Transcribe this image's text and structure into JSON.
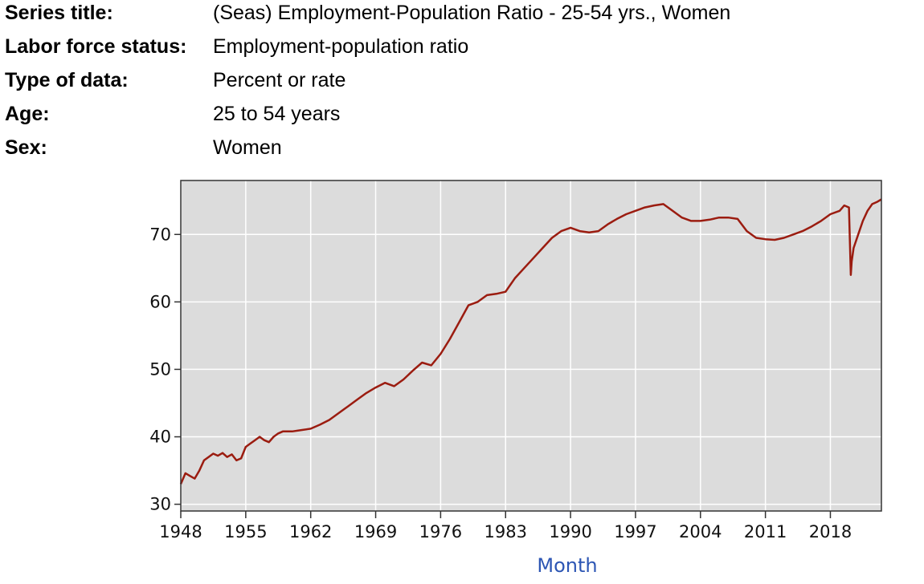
{
  "series_info": [
    {
      "label": "Series title:",
      "value": "(Seas) Employment-Population Ratio - 25-54 yrs., Women"
    },
    {
      "label": "Labor force status:",
      "value": "Employment-population ratio"
    },
    {
      "label": "Type of data:",
      "value": "Percent or rate"
    },
    {
      "label": "Age:",
      "value": "25 to 54 years"
    },
    {
      "label": "Sex:",
      "value": "Women"
    }
  ],
  "chart_data": {
    "type": "line",
    "xlabel": "Month",
    "ylabel": "",
    "xlim": [
      1948,
      2023.5
    ],
    "ylim": [
      29,
      78
    ],
    "x_ticks": [
      1948,
      1955,
      1962,
      1969,
      1976,
      1983,
      1990,
      1997,
      2004,
      2011,
      2018
    ],
    "x_tick_labels": [
      "1948",
      "1955",
      "1962",
      "1969",
      "1976",
      "1983",
      "1990",
      "1997",
      "2004",
      "2011",
      "2018"
    ],
    "y_ticks": [
      30,
      40,
      50,
      60,
      70
    ],
    "y_tick_labels": [
      "30",
      "40",
      "50",
      "60",
      "70"
    ],
    "grid": true,
    "line_color": "#9b1c10",
    "plot_background": "#dcdcdc",
    "series": [
      {
        "x": [
          1948.0,
          1948.5,
          1949.0,
          1949.5,
          1950.0,
          1950.5,
          1951.0,
          1951.5,
          1952.0,
          1952.5,
          1953.0,
          1953.5,
          1954.0,
          1954.5,
          1955.0,
          1955.5,
          1956.0,
          1956.5,
          1957.0,
          1957.5,
          1958.0,
          1958.5,
          1959.0,
          1960.0,
          1961.0,
          1962.0,
          1963.0,
          1964.0,
          1965.0,
          1966.0,
          1967.0,
          1968.0,
          1969.0,
          1970.0,
          1971.0,
          1972.0,
          1973.0,
          1974.0,
          1975.0,
          1976.0,
          1977.0,
          1978.0,
          1979.0,
          1980.0,
          1981.0,
          1982.0,
          1983.0,
          1984.0,
          1985.0,
          1986.0,
          1987.0,
          1988.0,
          1989.0,
          1990.0,
          1991.0,
          1992.0,
          1993.0,
          1994.0,
          1995.0,
          1996.0,
          1997.0,
          1998.0,
          1999.0,
          2000.0,
          2001.0,
          2002.0,
          2003.0,
          2004.0,
          2005.0,
          2006.0,
          2007.0,
          2008.0,
          2009.0,
          2010.0,
          2011.0,
          2012.0,
          2013.0,
          2014.0,
          2015.0,
          2016.0,
          2017.0,
          2018.0,
          2019.0,
          2019.5,
          2020.0,
          2020.2,
          2020.3,
          2020.5,
          2021.0,
          2021.5,
          2022.0,
          2022.5,
          2023.0,
          2023.5
        ],
        "y": [
          33.0,
          34.6,
          34.2,
          33.8,
          35.0,
          36.5,
          37.0,
          37.5,
          37.2,
          37.6,
          37.0,
          37.4,
          36.5,
          36.8,
          38.5,
          39.0,
          39.5,
          40.0,
          39.5,
          39.2,
          40.0,
          40.5,
          40.8,
          40.8,
          41.0,
          41.2,
          41.8,
          42.5,
          43.5,
          44.5,
          45.5,
          46.5,
          47.3,
          48.0,
          47.5,
          48.5,
          49.8,
          51.0,
          50.6,
          52.3,
          54.5,
          57.0,
          59.5,
          60.0,
          61.0,
          61.2,
          61.5,
          63.5,
          65.0,
          66.5,
          68.0,
          69.5,
          70.5,
          71.0,
          70.5,
          70.3,
          70.5,
          71.5,
          72.3,
          73.0,
          73.5,
          74.0,
          74.3,
          74.5,
          73.5,
          72.5,
          72.0,
          72.0,
          72.2,
          72.5,
          72.5,
          72.3,
          70.5,
          69.5,
          69.3,
          69.2,
          69.5,
          70.0,
          70.5,
          71.2,
          72.0,
          73.0,
          73.5,
          74.3,
          74.0,
          64.0,
          66.0,
          68.0,
          70.0,
          72.0,
          73.5,
          74.5,
          74.8,
          75.2
        ]
      }
    ]
  }
}
